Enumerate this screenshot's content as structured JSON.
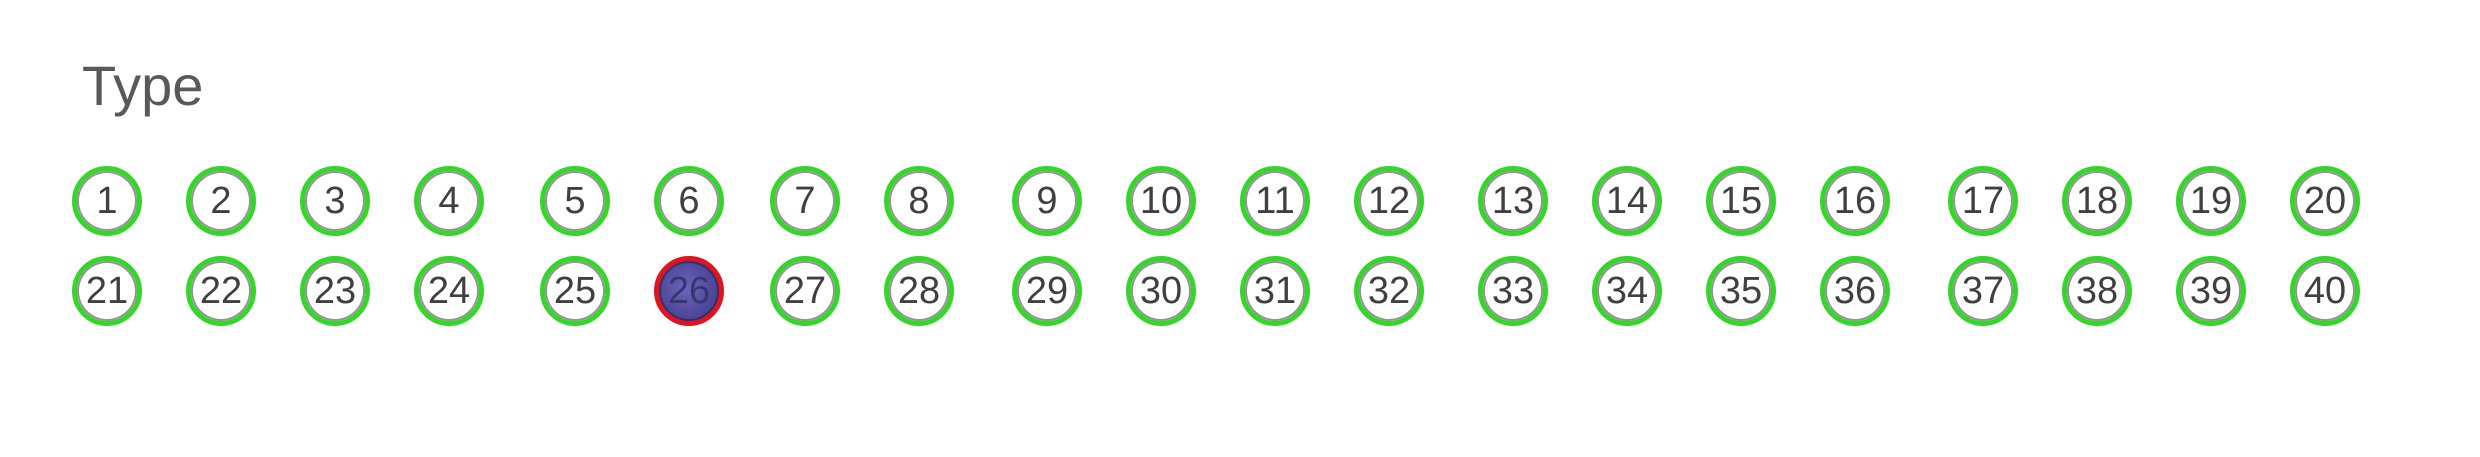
{
  "section": {
    "title": "Type"
  },
  "colors": {
    "unselected_ring": "#35d62a",
    "selected_ring": "#e0141c",
    "selected_fill": "#4f4a9c"
  },
  "bubbles": {
    "selected": "26",
    "row1": [
      "1",
      "2",
      "3",
      "4",
      "5",
      "6",
      "7",
      "8",
      "9",
      "10",
      "11",
      "12",
      "13",
      "14",
      "15",
      "16",
      "17",
      "18",
      "19",
      "20"
    ],
    "row2": [
      "21",
      "22",
      "23",
      "24",
      "25",
      "26",
      "27",
      "28",
      "29",
      "30",
      "31",
      "32",
      "33",
      "34",
      "35",
      "36",
      "37",
      "38",
      "39",
      "40"
    ]
  }
}
